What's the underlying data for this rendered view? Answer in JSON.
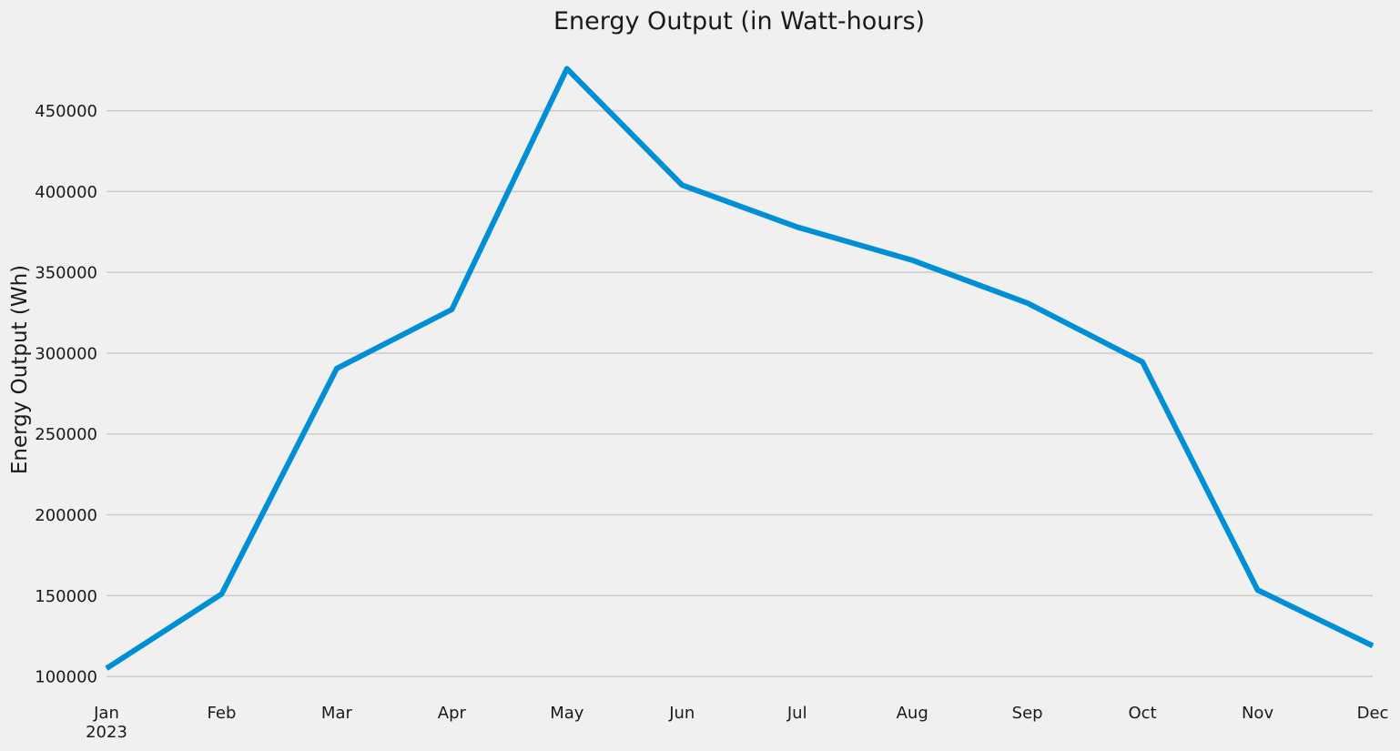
{
  "chart_data": {
    "type": "line",
    "title": "Energy Output (in Watt-hours)",
    "xlabel": "",
    "ylabel": "Energy Output (Wh)",
    "categories": [
      "Jan",
      "Feb",
      "Mar",
      "Apr",
      "May",
      "Jun",
      "Jul",
      "Aug",
      "Sep",
      "Oct",
      "Nov",
      "Dec"
    ],
    "year_label": "2023",
    "series": [
      {
        "color": "#008fd5",
        "values": [
          105000,
          151000,
          290500,
          327000,
          476000,
          404000,
          378000,
          357500,
          331000,
          294500,
          153500,
          119000
        ]
      }
    ],
    "yticks": [
      100000,
      150000,
      200000,
      250000,
      300000,
      350000,
      400000,
      450000
    ],
    "ylim": [
      95000,
      492000
    ],
    "grid": "horizontal",
    "legend": "none"
  }
}
